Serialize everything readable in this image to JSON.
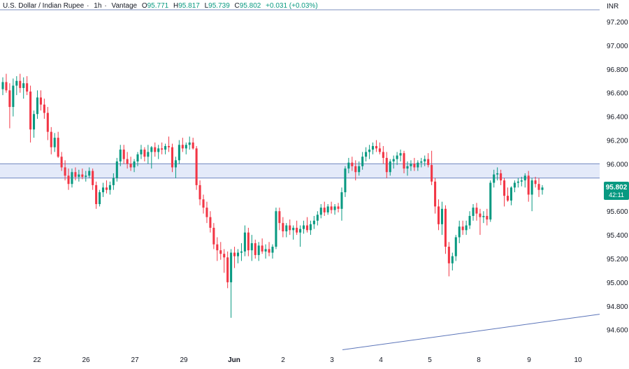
{
  "header": {
    "symbol": "U.S. Dollar / Indian Rupee",
    "interval": "1h",
    "source": "Vantage",
    "o_label": "O",
    "o": "95.771",
    "h_label": "H",
    "h": "95.817",
    "l_label": "L",
    "l": "95.739",
    "c_label": "C",
    "c": "95.802",
    "change": "+0.031 (+0.03%)"
  },
  "price_axis": {
    "currency": "INR",
    "current_price": "95.802",
    "countdown": "42:11"
  },
  "colors": {
    "up": "#089981",
    "down": "#f23645",
    "zone_fill": "#dbe3f7",
    "zone_line": "#6f86bf",
    "trendline": "#5b74b9",
    "top_line": "#7c8fbd",
    "price_tag": "#089981"
  },
  "chart_data": {
    "type": "candlestick",
    "title": "U.S. Dollar / Indian Rupee · 1h · Vantage",
    "ylim": [
      94.52,
      97.35
    ],
    "y_ticks": [
      "97.200",
      "97.000",
      "96.800",
      "96.600",
      "96.400",
      "96.200",
      "96.000",
      "95.800",
      "95.600",
      "95.400",
      "95.200",
      "95.000",
      "94.800",
      "94.600"
    ],
    "x_ticks": [
      "22",
      "26",
      "27",
      "29",
      "Jun",
      "2",
      "3",
      "4",
      "5",
      "8",
      "9",
      "10"
    ],
    "resistance_zone": [
      95.88,
      96.0
    ],
    "top_line": 97.3,
    "trendline": {
      "from_label": "3",
      "to_label": "10",
      "y_start": 94.43,
      "y_end": 94.73
    },
    "candles": [
      [
        96.63,
        96.73,
        96.58,
        96.69
      ],
      [
        96.69,
        96.76,
        96.6,
        96.62
      ],
      [
        96.62,
        96.68,
        96.3,
        96.48
      ],
      [
        96.48,
        96.72,
        96.4,
        96.66
      ],
      [
        96.66,
        96.74,
        96.58,
        96.7
      ],
      [
        96.7,
        96.76,
        96.6,
        96.64
      ],
      [
        96.64,
        96.73,
        96.55,
        96.68
      ],
      [
        96.68,
        96.74,
        96.58,
        96.61
      ],
      [
        96.61,
        96.66,
        96.18,
        96.29
      ],
      [
        96.29,
        96.45,
        96.22,
        96.42
      ],
      [
        96.42,
        96.62,
        96.38,
        96.56
      ],
      [
        96.56,
        96.62,
        96.45,
        96.5
      ],
      [
        96.5,
        96.55,
        96.38,
        96.43
      ],
      [
        96.43,
        96.48,
        96.2,
        96.27
      ],
      [
        96.27,
        96.31,
        96.08,
        96.14
      ],
      [
        96.14,
        96.26,
        96.1,
        96.22
      ],
      [
        96.22,
        96.27,
        96.05,
        96.06
      ],
      [
        96.06,
        96.1,
        95.94,
        95.97
      ],
      [
        95.97,
        96.03,
        95.86,
        95.9
      ],
      [
        95.9,
        95.96,
        95.78,
        95.83
      ],
      [
        95.83,
        95.96,
        95.8,
        95.93
      ],
      [
        95.93,
        95.97,
        95.86,
        95.89
      ],
      [
        95.89,
        95.95,
        95.85,
        95.91
      ],
      [
        95.91,
        95.96,
        95.87,
        95.89
      ],
      [
        95.89,
        95.94,
        95.85,
        95.9
      ],
      [
        95.9,
        95.97,
        95.88,
        95.94
      ],
      [
        95.94,
        95.96,
        95.78,
        95.82
      ],
      [
        95.82,
        95.85,
        95.62,
        95.66
      ],
      [
        95.66,
        95.78,
        95.64,
        95.76
      ],
      [
        95.76,
        95.84,
        95.72,
        95.8
      ],
      [
        95.8,
        95.86,
        95.75,
        95.78
      ],
      [
        95.78,
        95.85,
        95.74,
        95.82
      ],
      [
        95.82,
        95.92,
        95.78,
        95.88
      ],
      [
        95.88,
        96.05,
        95.85,
        96.02
      ],
      [
        96.02,
        96.16,
        95.98,
        96.12
      ],
      [
        96.12,
        96.16,
        96.0,
        96.04
      ],
      [
        96.04,
        96.1,
        95.96,
        96.0
      ],
      [
        96.0,
        96.06,
        95.94,
        95.97
      ],
      [
        95.97,
        96.04,
        95.93,
        96.02
      ],
      [
        96.02,
        96.1,
        95.98,
        96.08
      ],
      [
        96.08,
        96.16,
        96.04,
        96.12
      ],
      [
        96.12,
        96.14,
        96.02,
        96.06
      ],
      [
        96.06,
        96.16,
        96.0,
        96.1
      ],
      [
        96.1,
        96.15,
        95.96,
        96.14
      ],
      [
        96.14,
        96.18,
        96.06,
        96.1
      ],
      [
        96.1,
        96.16,
        96.04,
        96.13
      ],
      [
        96.13,
        96.18,
        96.08,
        96.12
      ],
      [
        96.12,
        96.17,
        96.08,
        96.15
      ],
      [
        96.15,
        96.23,
        96.1,
        96.14
      ],
      [
        96.14,
        96.17,
        95.93,
        95.97
      ],
      [
        95.97,
        96.06,
        95.88,
        96.03
      ],
      [
        96.03,
        96.2,
        96.0,
        96.16
      ],
      [
        96.16,
        96.22,
        96.1,
        96.13
      ],
      [
        96.13,
        96.18,
        96.08,
        96.16
      ],
      [
        96.16,
        96.23,
        96.12,
        96.18
      ],
      [
        96.18,
        96.22,
        96.12,
        96.13
      ],
      [
        96.13,
        96.15,
        95.78,
        95.82
      ],
      [
        95.82,
        95.86,
        95.65,
        95.7
      ],
      [
        95.7,
        95.74,
        95.58,
        95.63
      ],
      [
        95.63,
        95.68,
        95.5,
        95.55
      ],
      [
        95.55,
        95.6,
        95.42,
        95.46
      ],
      [
        95.46,
        95.5,
        95.28,
        95.32
      ],
      [
        95.32,
        95.38,
        95.18,
        95.27
      ],
      [
        95.27,
        95.34,
        95.19,
        95.24
      ],
      [
        95.24,
        95.28,
        95.08,
        95.21
      ],
      [
        95.21,
        95.26,
        94.95,
        95.0
      ],
      [
        95.0,
        95.28,
        94.7,
        95.25
      ],
      [
        95.25,
        95.3,
        95.12,
        95.22
      ],
      [
        95.22,
        95.28,
        95.16,
        95.25
      ],
      [
        95.25,
        95.33,
        95.18,
        95.26
      ],
      [
        95.26,
        95.48,
        95.22,
        95.42
      ],
      [
        95.42,
        95.46,
        95.22,
        95.27
      ],
      [
        95.27,
        95.4,
        95.18,
        95.33
      ],
      [
        95.33,
        95.36,
        95.2,
        95.23
      ],
      [
        95.23,
        95.34,
        95.18,
        95.31
      ],
      [
        95.31,
        95.37,
        95.24,
        95.26
      ],
      [
        95.26,
        95.32,
        95.2,
        95.28
      ],
      [
        95.28,
        95.34,
        95.22,
        95.25
      ],
      [
        95.25,
        95.32,
        95.2,
        95.3
      ],
      [
        95.3,
        95.63,
        95.28,
        95.6
      ],
      [
        95.6,
        95.63,
        95.44,
        95.5
      ],
      [
        95.5,
        95.55,
        95.38,
        95.43
      ],
      [
        95.43,
        95.5,
        95.38,
        95.48
      ],
      [
        95.48,
        95.53,
        95.4,
        95.44
      ],
      [
        95.44,
        95.48,
        95.36,
        95.46
      ],
      [
        95.46,
        95.52,
        95.4,
        95.42
      ],
      [
        95.42,
        95.48,
        95.3,
        95.45
      ],
      [
        95.45,
        95.52,
        95.41,
        95.48
      ],
      [
        95.48,
        95.55,
        95.42,
        95.44
      ],
      [
        95.44,
        95.52,
        95.4,
        95.49
      ],
      [
        95.49,
        95.56,
        95.45,
        95.52
      ],
      [
        95.52,
        95.6,
        95.48,
        95.57
      ],
      [
        95.57,
        95.66,
        95.54,
        95.63
      ],
      [
        95.63,
        95.68,
        95.56,
        95.59
      ],
      [
        95.59,
        95.66,
        95.57,
        95.64
      ],
      [
        95.64,
        95.68,
        95.58,
        95.61
      ],
      [
        95.61,
        95.66,
        95.57,
        95.64
      ],
      [
        95.64,
        95.67,
        95.59,
        95.62
      ],
      [
        95.62,
        95.8,
        95.52,
        95.76
      ],
      [
        95.76,
        95.98,
        95.72,
        95.96
      ],
      [
        95.96,
        96.05,
        95.92,
        96.01
      ],
      [
        96.01,
        96.06,
        95.94,
        95.98
      ],
      [
        95.98,
        96.03,
        95.86,
        95.93
      ],
      [
        95.93,
        96.02,
        95.9,
        95.98
      ],
      [
        95.98,
        96.1,
        95.95,
        96.06
      ],
      [
        96.06,
        96.14,
        96.02,
        96.1
      ],
      [
        96.1,
        96.16,
        96.04,
        96.12
      ],
      [
        96.12,
        96.18,
        96.08,
        96.15
      ],
      [
        96.15,
        96.2,
        96.1,
        96.13
      ],
      [
        96.13,
        96.18,
        96.08,
        96.1
      ],
      [
        96.1,
        96.15,
        96.0,
        96.05
      ],
      [
        96.05,
        96.1,
        95.88,
        95.93
      ],
      [
        95.93,
        96.04,
        95.9,
        96.02
      ],
      [
        96.02,
        96.07,
        95.96,
        96.04
      ],
      [
        96.04,
        96.1,
        95.99,
        96.07
      ],
      [
        96.07,
        96.12,
        96.02,
        96.09
      ],
      [
        96.09,
        96.11,
        95.92,
        95.96
      ],
      [
        95.96,
        96.02,
        95.9,
        95.98
      ],
      [
        95.98,
        96.03,
        95.94,
        96.0
      ],
      [
        96.0,
        96.05,
        95.94,
        95.97
      ],
      [
        95.97,
        96.03,
        95.94,
        96.01
      ],
      [
        96.01,
        96.05,
        95.97,
        96.02
      ],
      [
        96.02,
        96.07,
        95.98,
        96.04
      ],
      [
        96.04,
        96.09,
        95.97,
        95.99
      ],
      [
        95.99,
        96.11,
        95.82,
        95.85
      ],
      [
        95.85,
        95.88,
        95.58,
        95.64
      ],
      [
        95.64,
        95.7,
        95.44,
        95.49
      ],
      [
        95.49,
        95.68,
        95.4,
        95.62
      ],
      [
        95.62,
        95.65,
        95.24,
        95.3
      ],
      [
        95.3,
        95.34,
        95.05,
        95.16
      ],
      [
        95.16,
        95.25,
        95.1,
        95.22
      ],
      [
        95.22,
        95.4,
        95.18,
        95.38
      ],
      [
        95.38,
        95.52,
        95.33,
        95.47
      ],
      [
        95.47,
        95.52,
        95.4,
        95.44
      ],
      [
        95.44,
        95.52,
        95.4,
        95.48
      ],
      [
        95.48,
        95.6,
        95.45,
        95.56
      ],
      [
        95.56,
        95.66,
        95.52,
        95.63
      ],
      [
        95.63,
        95.67,
        95.52,
        95.58
      ],
      [
        95.58,
        95.62,
        95.4,
        95.55
      ],
      [
        95.55,
        95.6,
        95.5,
        95.56
      ],
      [
        95.56,
        95.62,
        95.48,
        95.53
      ],
      [
        95.53,
        95.86,
        95.51,
        95.84
      ],
      [
        95.84,
        95.95,
        95.8,
        95.91
      ],
      [
        95.91,
        95.97,
        95.86,
        95.92
      ],
      [
        95.92,
        95.95,
        95.82,
        95.86
      ],
      [
        95.86,
        95.88,
        95.64,
        95.73
      ],
      [
        95.73,
        95.8,
        95.68,
        95.69
      ],
      [
        95.69,
        95.81,
        95.65,
        95.8
      ],
      [
        95.8,
        95.86,
        95.76,
        95.84
      ],
      [
        95.84,
        95.88,
        95.8,
        95.85
      ],
      [
        95.85,
        95.89,
        95.81,
        95.86
      ],
      [
        95.86,
        95.92,
        95.8,
        95.9
      ],
      [
        95.9,
        95.94,
        95.68,
        95.74
      ],
      [
        95.74,
        95.88,
        95.6,
        95.86
      ],
      [
        95.86,
        95.89,
        95.8,
        95.83
      ],
      [
        95.83,
        95.88,
        95.72,
        95.78
      ],
      [
        95.78,
        95.82,
        95.74,
        95.8
      ]
    ]
  }
}
